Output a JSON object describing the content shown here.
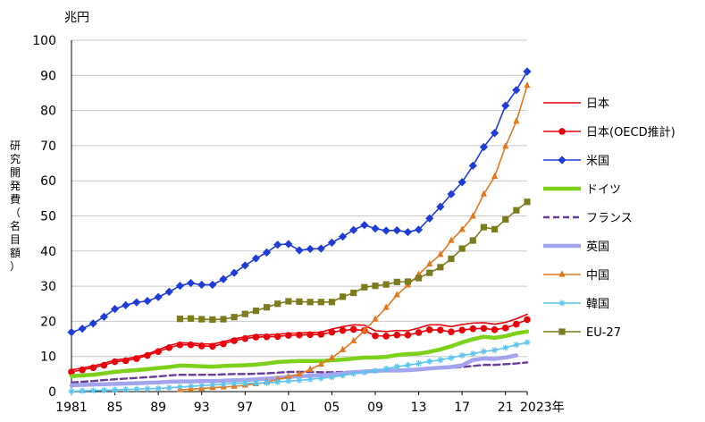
{
  "chart_data": {
    "type": "line",
    "unit_label": "兆円",
    "ylabel": "研究開発費（名目額）",
    "ylim": [
      0,
      100
    ],
    "y_ticks": [
      "0",
      "10",
      "20",
      "30",
      "40",
      "50",
      "60",
      "70",
      "80",
      "90",
      "100"
    ],
    "xlim": [
      1981,
      2023
    ],
    "x_ticks": [
      {
        "x": 1981,
        "label": "1981"
      },
      {
        "x": 1985,
        "label": "85"
      },
      {
        "x": 1989,
        "label": "89"
      },
      {
        "x": 1993,
        "label": "93"
      },
      {
        "x": 1997,
        "label": "97"
      },
      {
        "x": 2001,
        "label": "01"
      },
      {
        "x": 2005,
        "label": "05"
      },
      {
        "x": 2009,
        "label": "09"
      },
      {
        "x": 2013,
        "label": "13"
      },
      {
        "x": 2017,
        "label": "17"
      },
      {
        "x": 2021,
        "label": "21"
      },
      {
        "x": 2023,
        "label": "2023年"
      }
    ],
    "grid": "horizontal",
    "legend_position": "right",
    "series": [
      {
        "name": "日本",
        "color": "#e8000b",
        "marker": "none",
        "dash": "solid",
        "width": 1.6,
        "x_start": 1981,
        "values": [
          6.2,
          6.7,
          7.3,
          8.0,
          9.0,
          9.3,
          9.9,
          10.7,
          11.9,
          13.1,
          13.9,
          13.8,
          13.6,
          13.5,
          14.2,
          15.0,
          15.6,
          16.1,
          16.1,
          16.3,
          16.6,
          16.7,
          16.8,
          16.9,
          17.8,
          18.5,
          19.0,
          18.9,
          17.3,
          17.1,
          17.4,
          17.3,
          18.1,
          19.0,
          19.0,
          18.5,
          19.1,
          19.5,
          19.6,
          19.2,
          19.7,
          20.7,
          22.0
        ]
      },
      {
        "name": "日本(OECD推計)",
        "color": "#e8000b",
        "marker": "circle",
        "dash": "solid",
        "width": 1.6,
        "x_start": 1981,
        "values": [
          5.6,
          6.2,
          6.8,
          7.5,
          8.5,
          8.8,
          9.4,
          10.3,
          11.4,
          12.5,
          13.3,
          13.3,
          13.0,
          12.9,
          13.6,
          14.5,
          15.1,
          15.5,
          15.6,
          15.7,
          16.0,
          16.1,
          16.2,
          16.3,
          16.9,
          17.4,
          17.7,
          17.4,
          15.9,
          15.8,
          16.1,
          16.1,
          16.8,
          17.6,
          17.5,
          17.0,
          17.5,
          17.9,
          18.0,
          17.6,
          18.1,
          19.2,
          20.5
        ]
      },
      {
        "name": "米国",
        "color": "#1f3cd6",
        "marker": "diamond",
        "dash": "solid",
        "width": 1.6,
        "x_start": 1981,
        "values": [
          16.9,
          17.9,
          19.4,
          21.3,
          23.5,
          24.6,
          25.4,
          25.8,
          26.9,
          28.4,
          30.1,
          30.9,
          30.4,
          30.4,
          32.0,
          33.8,
          35.9,
          37.9,
          39.6,
          41.8,
          42.0,
          40.2,
          40.6,
          40.7,
          42.4,
          44.1,
          46.0,
          47.4,
          46.4,
          45.8,
          45.9,
          45.4,
          46.1,
          49.3,
          52.6,
          56.2,
          59.6,
          64.3,
          69.6,
          73.6,
          81.4,
          85.8,
          91.1
        ]
      },
      {
        "name": "ドイツ",
        "color": "#7dd11b",
        "marker": "none",
        "dash": "solid",
        "width": 4.5,
        "x_start": 1981,
        "values": [
          4.4,
          4.6,
          4.8,
          5.2,
          5.6,
          5.9,
          6.1,
          6.4,
          6.7,
          7.0,
          7.4,
          7.3,
          7.2,
          7.1,
          7.3,
          7.4,
          7.5,
          7.7,
          8.0,
          8.4,
          8.6,
          8.7,
          8.7,
          8.7,
          8.9,
          9.1,
          9.4,
          9.7,
          9.7,
          9.9,
          10.4,
          10.7,
          10.8,
          11.3,
          12.0,
          12.9,
          14.0,
          14.9,
          15.6,
          15.3,
          15.8,
          16.6,
          17.1
        ]
      },
      {
        "name": "フランス",
        "color": "#6a3d9a",
        "marker": "none",
        "dash": "dashed",
        "width": 2.4,
        "x_start": 1981,
        "values": [
          2.6,
          2.8,
          3.0,
          3.3,
          3.5,
          3.7,
          3.9,
          4.1,
          4.3,
          4.6,
          4.8,
          4.8,
          4.8,
          4.8,
          4.9,
          5.0,
          5.0,
          5.1,
          5.2,
          5.4,
          5.6,
          5.6,
          5.6,
          5.5,
          5.5,
          5.6,
          5.7,
          5.8,
          6.0,
          6.1,
          6.2,
          6.2,
          6.3,
          6.5,
          6.6,
          6.8,
          7.0,
          7.3,
          7.6,
          7.6,
          7.8,
          8.0,
          8.3
        ]
      },
      {
        "name": "英国",
        "color": "#a3a3ee",
        "marker": "none",
        "dash": "solid",
        "width": 4.5,
        "x_start": 1981,
        "values": [
          1.8,
          1.9,
          2.0,
          2.1,
          2.2,
          2.3,
          2.4,
          2.5,
          2.6,
          2.8,
          2.9,
          2.9,
          3.0,
          3.0,
          3.1,
          3.2,
          3.3,
          3.5,
          3.7,
          3.9,
          4.2,
          4.4,
          4.5,
          4.6,
          4.9,
          5.2,
          5.5,
          5.7,
          5.9,
          6.0,
          6.0,
          6.1,
          6.3,
          6.6,
          6.8,
          7.0,
          7.5,
          9.0,
          9.4,
          9.3,
          9.7,
          10.3
        ]
      },
      {
        "name": "中国",
        "color": "#e3781e",
        "marker": "triangle",
        "dash": "solid",
        "width": 1.6,
        "x_start": 1991,
        "values": [
          0.5,
          0.7,
          0.9,
          1.1,
          1.3,
          1.5,
          1.8,
          2.2,
          2.7,
          3.5,
          4.2,
          5.0,
          6.3,
          7.8,
          9.6,
          11.9,
          14.4,
          17.4,
          20.6,
          23.9,
          27.5,
          30.3,
          33.3,
          36.3,
          39.0,
          43.0,
          46.1,
          49.9,
          56.2,
          61.2,
          69.8,
          76.9,
          87.1
        ]
      },
      {
        "name": "韓国",
        "color": "#5cc4ee",
        "marker": "star",
        "dash": "solid",
        "width": 1.6,
        "x_start": 1981,
        "values": [
          0.1,
          0.2,
          0.3,
          0.4,
          0.5,
          0.6,
          0.7,
          0.8,
          0.9,
          1.1,
          1.3,
          1.5,
          1.7,
          1.9,
          2.1,
          2.3,
          2.4,
          2.4,
          2.5,
          2.7,
          3.0,
          3.2,
          3.5,
          3.8,
          4.1,
          4.6,
          5.1,
          5.5,
          5.9,
          6.5,
          7.1,
          7.5,
          8.0,
          8.6,
          9.0,
          9.6,
          10.3,
          10.8,
          11.4,
          11.8,
          12.5,
          13.3,
          14.0
        ]
      },
      {
        "name": "EU-27",
        "color": "#7c7c1f",
        "marker": "square",
        "dash": "solid",
        "width": 1.6,
        "x_start": 1991,
        "values": [
          20.7,
          20.8,
          20.6,
          20.5,
          20.6,
          21.2,
          22.1,
          23.0,
          24.0,
          25.0,
          25.7,
          25.6,
          25.5,
          25.5,
          25.5,
          27.0,
          28.1,
          29.7,
          30.1,
          30.5,
          31.2,
          31.3,
          32.3,
          33.8,
          35.4,
          37.8,
          40.7,
          43.0,
          46.8,
          46.2,
          49.0,
          51.6,
          54.0
        ]
      }
    ]
  }
}
